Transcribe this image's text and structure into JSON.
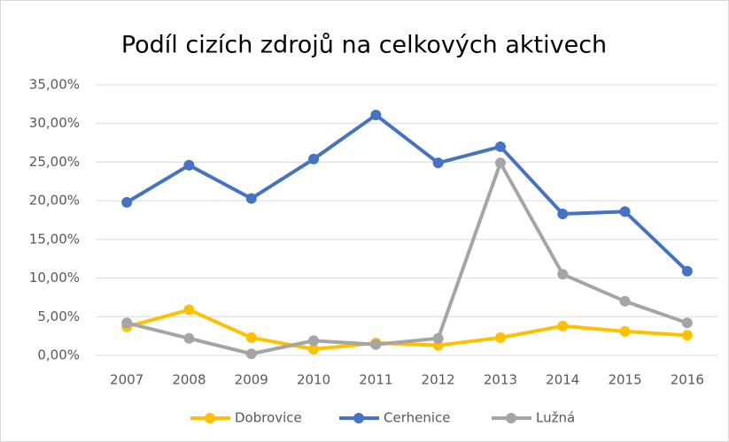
{
  "chart_data": {
    "type": "line",
    "title": "Podíl cizích zdrojů na celkových aktivech",
    "categories": [
      "2007",
      "2008",
      "2009",
      "2010",
      "2011",
      "2012",
      "2013",
      "2014",
      "2015",
      "2016"
    ],
    "series": [
      {
        "name": "Dobrovice",
        "color": "#FFC000",
        "values": [
          3.7,
          5.9,
          2.3,
          0.8,
          1.6,
          1.3,
          2.3,
          3.8,
          3.1,
          2.6
        ]
      },
      {
        "name": "Cerhenice",
        "color": "#4472C4",
        "values": [
          19.8,
          24.6,
          20.3,
          25.4,
          31.1,
          24.9,
          27.0,
          18.3,
          18.6,
          10.9
        ]
      },
      {
        "name": "Lužná",
        "color": "#A5A5A5",
        "values": [
          4.2,
          2.2,
          0.2,
          1.9,
          1.4,
          2.2,
          24.9,
          10.5,
          7.0,
          4.2
        ]
      }
    ],
    "ylim": [
      0,
      35
    ],
    "yticks": [
      {
        "value": 0,
        "label": "0,00%"
      },
      {
        "value": 5,
        "label": "5,00%"
      },
      {
        "value": 10,
        "label": "10,00%"
      },
      {
        "value": 15,
        "label": "15,00%"
      },
      {
        "value": 20,
        "label": "20,00%"
      },
      {
        "value": 25,
        "label": "25,00%"
      },
      {
        "value": 30,
        "label": "30,00%"
      },
      {
        "value": 35,
        "label": "35,00%"
      }
    ],
    "grid": true,
    "legend": "bottom"
  }
}
